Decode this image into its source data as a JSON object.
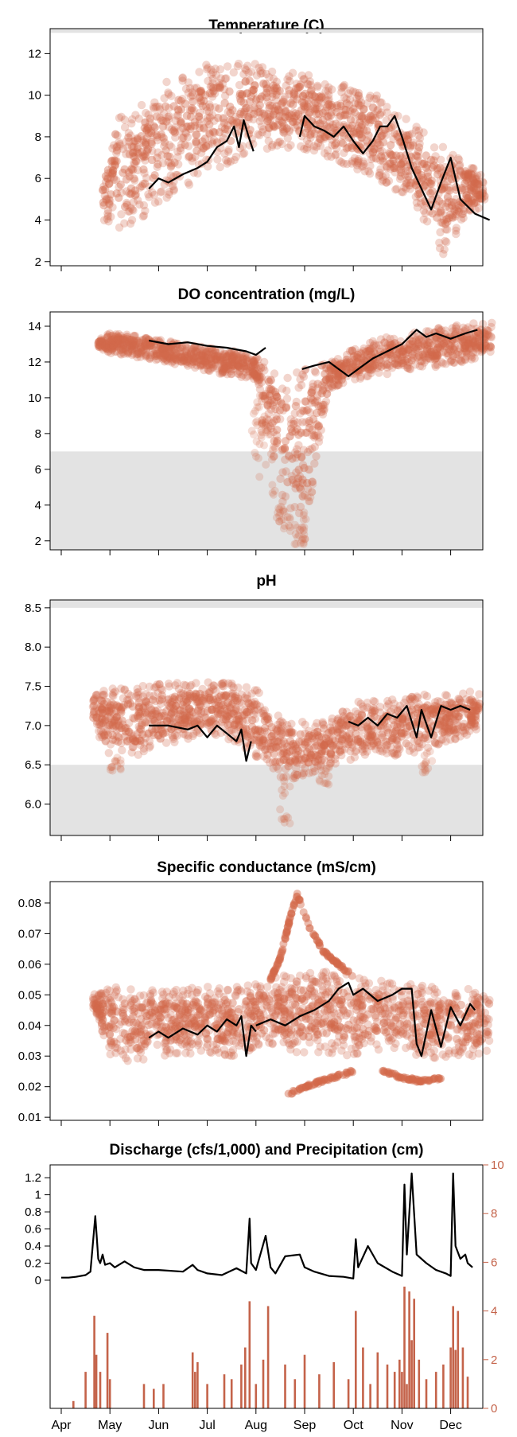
{
  "months": [
    "Apr",
    "May",
    "Jun",
    "Jul",
    "Aug",
    "Sep",
    "Oct",
    "Nov",
    "Dec"
  ],
  "colors": {
    "points": "#d2694a",
    "line": "#000000",
    "band": "#e3e3e3",
    "precip": "#c4634a",
    "axis": "#000000"
  },
  "chart_data": [
    {
      "type": "scatter",
      "title": "Temperature (C)",
      "ylim": [
        1.8,
        13.2
      ],
      "yticks": [
        2,
        4,
        6,
        8,
        10,
        12
      ],
      "yticklabels": [
        "2",
        "4",
        "6",
        "8",
        "10",
        "12"
      ],
      "bands": [
        [
          13.0,
          13.2
        ]
      ],
      "cloud": {
        "x": [
          0.85,
          1.2,
          1.6,
          2.0,
          2.5,
          3.0,
          3.5,
          4.0,
          4.5,
          5.0,
          5.5,
          6.0,
          6.5,
          7.0,
          7.5,
          7.85,
          8.3,
          8.7
        ],
        "upper": [
          7.0,
          9.0,
          9.5,
          10.5,
          11.0,
          11.5,
          11.5,
          11.8,
          11.0,
          11.2,
          10.5,
          10.5,
          10.0,
          9.0,
          8.2,
          7.5,
          7.0,
          6.0
        ],
        "lower": [
          4.0,
          3.3,
          4.0,
          4.8,
          5.5,
          6.2,
          6.8,
          7.2,
          7.5,
          7.4,
          7.0,
          6.5,
          6.0,
          5.2,
          3.8,
          2.3,
          4.0,
          4.8
        ]
      },
      "series": [
        {
          "name": "segment_1",
          "x": [
            1.8,
            2.0,
            2.2,
            2.5,
            2.8,
            3.0,
            3.2,
            3.4,
            3.55,
            3.65,
            3.75,
            3.85,
            3.95
          ],
          "y": [
            5.5,
            6.0,
            5.8,
            6.2,
            6.5,
            6.8,
            7.5,
            7.8,
            8.5,
            7.5,
            8.8,
            8.0,
            7.3
          ]
        },
        {
          "name": "segment_2",
          "x": [
            4.9,
            5.0,
            5.2,
            5.4,
            5.6,
            5.8,
            6.0,
            6.2,
            6.4,
            6.55,
            6.7,
            6.85,
            7.0,
            7.2,
            7.4,
            7.6,
            7.8,
            8.0,
            8.2,
            8.5,
            8.8
          ],
          "y": [
            8.0,
            9.0,
            8.5,
            8.3,
            8.0,
            8.5,
            7.8,
            7.2,
            7.8,
            8.5,
            8.5,
            9.0,
            8.0,
            6.5,
            5.5,
            4.5,
            5.8,
            7.0,
            5.0,
            4.3,
            4.0
          ]
        }
      ]
    },
    {
      "type": "scatter",
      "title": "DO concentration (mg/L)",
      "ylim": [
        1.5,
        14.8
      ],
      "yticks": [
        2,
        4,
        6,
        8,
        10,
        12,
        14
      ],
      "yticklabels": [
        "2",
        "4",
        "6",
        "8",
        "10",
        "12",
        "14"
      ],
      "bands": [
        [
          1.5,
          7.0
        ]
      ],
      "cloud": {
        "x": [
          0.75,
          1.0,
          1.5,
          2.0,
          2.5,
          3.0,
          3.5,
          4.0,
          4.2,
          4.5,
          4.8,
          5.0,
          5.2,
          5.5,
          5.8,
          6.0,
          6.5,
          7.0,
          7.5,
          8.0,
          8.5,
          8.85
        ],
        "upper": [
          13.3,
          13.7,
          13.5,
          13.3,
          13.0,
          12.8,
          12.7,
          12.3,
          12.0,
          11.5,
          11.4,
          11.6,
          11.8,
          12.0,
          12.3,
          12.8,
          13.3,
          13.5,
          13.8,
          14.0,
          14.2,
          14.3
        ],
        "lower": [
          12.7,
          12.5,
          12.3,
          12.0,
          11.8,
          11.5,
          11.2,
          11.0,
          9.0,
          4.0,
          3.0,
          2.0,
          6.0,
          10.5,
          10.8,
          11.0,
          11.2,
          11.5,
          11.6,
          11.8,
          12.2,
          12.5
        ],
        "spikes": [
          {
            "x": 4.0,
            "y": 6.5
          },
          {
            "x": 4.1,
            "y": 5.5
          },
          {
            "x": 4.25,
            "y": 8.0
          },
          {
            "x": 4.4,
            "y": 3.0
          },
          {
            "x": 4.6,
            "y": 2.5
          },
          {
            "x": 4.9,
            "y": 1.7
          },
          {
            "x": 5.05,
            "y": 4.5
          }
        ]
      },
      "series": [
        {
          "name": "segment_1",
          "x": [
            1.8,
            2.2,
            2.6,
            3.0,
            3.4,
            3.8,
            4.0,
            4.2
          ],
          "y": [
            13.2,
            13.0,
            13.1,
            12.9,
            12.8,
            12.6,
            12.4,
            12.8
          ]
        },
        {
          "name": "segment_2",
          "x": [
            4.95,
            5.2,
            5.5,
            5.7,
            5.9,
            6.1,
            6.4,
            6.7,
            7.0,
            7.3,
            7.5,
            7.7,
            8.0,
            8.3,
            8.55
          ],
          "y": [
            11.6,
            11.8,
            12.0,
            11.6,
            11.2,
            11.6,
            12.2,
            12.6,
            13.0,
            13.8,
            13.4,
            13.6,
            13.3,
            13.6,
            13.8
          ]
        }
      ]
    },
    {
      "type": "scatter",
      "title": "pH",
      "ylim": [
        5.6,
        8.6
      ],
      "yticks": [
        6.0,
        6.5,
        7.0,
        7.5,
        8.0,
        8.5
      ],
      "yticklabels": [
        "6.0",
        "6.5",
        "7.0",
        "7.5",
        "8.0",
        "8.5"
      ],
      "bands": [
        [
          5.6,
          6.5
        ],
        [
          8.5,
          8.6
        ]
      ],
      "cloud": {
        "x": [
          0.65,
          1.0,
          1.5,
          2.0,
          2.5,
          3.0,
          3.5,
          4.0,
          4.3,
          4.6,
          5.0,
          5.5,
          6.0,
          6.5,
          7.0,
          7.5,
          8.0,
          8.5,
          8.6
        ],
        "upper": [
          7.4,
          7.5,
          7.5,
          7.55,
          7.55,
          7.55,
          7.55,
          7.5,
          7.2,
          7.1,
          7.05,
          7.1,
          7.3,
          7.35,
          7.35,
          7.4,
          7.4,
          7.45,
          7.4
        ],
        "lower": [
          7.0,
          6.6,
          6.6,
          6.7,
          6.8,
          6.9,
          6.8,
          6.6,
          6.4,
          6.3,
          6.35,
          6.5,
          6.55,
          6.6,
          6.6,
          6.7,
          6.8,
          6.9,
          7.0
        ],
        "spikes": [
          {
            "x": 1.1,
            "y": 6.4
          },
          {
            "x": 4.6,
            "y": 5.7
          },
          {
            "x": 5.4,
            "y": 6.2
          },
          {
            "x": 7.5,
            "y": 6.4
          }
        ]
      },
      "series": [
        {
          "name": "segment_1",
          "x": [
            1.8,
            2.2,
            2.6,
            2.8,
            3.0,
            3.2,
            3.4,
            3.6,
            3.7,
            3.8,
            3.9
          ],
          "y": [
            7.0,
            7.0,
            6.95,
            7.0,
            6.85,
            7.0,
            6.9,
            6.8,
            6.95,
            6.55,
            6.8
          ]
        },
        {
          "name": "segment_2",
          "x": [
            5.9,
            6.1,
            6.3,
            6.5,
            6.7,
            6.9,
            7.1,
            7.3,
            7.4,
            7.6,
            7.8,
            8.0,
            8.2,
            8.4
          ],
          "y": [
            7.05,
            7.0,
            7.1,
            7.0,
            7.15,
            7.1,
            7.25,
            6.85,
            7.2,
            6.85,
            7.25,
            7.2,
            7.25,
            7.2
          ]
        }
      ]
    },
    {
      "type": "scatter",
      "title": "Specific conductance (mS/cm)",
      "ylim": [
        0.009,
        0.087
      ],
      "yticks": [
        0.01,
        0.02,
        0.03,
        0.04,
        0.05,
        0.06,
        0.07,
        0.08
      ],
      "yticklabels": [
        "0.01",
        "0.02",
        "0.03",
        "0.04",
        "0.05",
        "0.06",
        "0.07",
        "0.08"
      ],
      "bands": [],
      "cloud": {
        "x": [
          0.65,
          1.0,
          1.5,
          2.0,
          2.5,
          3.0,
          3.5,
          4.0,
          4.5,
          5.0,
          5.5,
          6.0,
          6.5,
          7.0,
          7.5,
          8.0,
          8.5,
          8.8
        ],
        "upper": [
          0.05,
          0.053,
          0.052,
          0.052,
          0.052,
          0.053,
          0.053,
          0.055,
          0.056,
          0.058,
          0.058,
          0.057,
          0.055,
          0.054,
          0.053,
          0.052,
          0.052,
          0.051
        ],
        "lower": [
          0.046,
          0.03,
          0.027,
          0.03,
          0.03,
          0.031,
          0.03,
          0.032,
          0.032,
          0.03,
          0.031,
          0.03,
          0.032,
          0.033,
          0.028,
          0.03,
          0.03,
          0.032
        ],
        "extras": [
          {
            "x": [
              4.3,
              4.5,
              4.7,
              4.85
            ],
            "y": [
              0.055,
              0.062,
              0.075,
              0.083
            ]
          },
          {
            "x": [
              4.85,
              5.1,
              5.4,
              5.7,
              6.0
            ],
            "y": [
              0.083,
              0.072,
              0.064,
              0.06,
              0.056
            ]
          },
          {
            "x": [
              4.6,
              5.0,
              5.4,
              5.8,
              6.0
            ],
            "y": [
              0.017,
              0.02,
              0.022,
              0.024,
              0.025
            ]
          },
          {
            "x": [
              6.6,
              7.0,
              7.3,
              7.5,
              7.8
            ],
            "y": [
              0.025,
              0.023,
              0.022,
              0.022,
              0.023
            ]
          }
        ]
      },
      "series": [
        {
          "name": "segment_1",
          "x": [
            1.8,
            2.0,
            2.2,
            2.5,
            2.8,
            3.0,
            3.2,
            3.4,
            3.6,
            3.7,
            3.8,
            3.9,
            4.0
          ],
          "y": [
            0.036,
            0.038,
            0.036,
            0.039,
            0.037,
            0.04,
            0.038,
            0.042,
            0.04,
            0.043,
            0.03,
            0.04,
            0.038
          ]
        },
        {
          "name": "segment_2",
          "x": [
            4.0,
            4.3,
            4.6,
            4.9,
            5.2,
            5.5,
            5.7,
            5.9,
            6.0,
            6.2,
            6.5,
            6.8,
            7.0,
            7.2,
            7.3,
            7.4,
            7.6,
            7.8,
            8.0,
            8.2,
            8.4,
            8.5
          ],
          "y": [
            0.04,
            0.042,
            0.04,
            0.043,
            0.045,
            0.048,
            0.052,
            0.054,
            0.05,
            0.052,
            0.048,
            0.05,
            0.052,
            0.052,
            0.034,
            0.03,
            0.045,
            0.033,
            0.046,
            0.04,
            0.047,
            0.045
          ]
        }
      ]
    },
    {
      "type": "line",
      "title": "Discharge (cfs/1,000) and Precipitation (cm)",
      "ylim": [
        -1.5,
        1.35
      ],
      "yticks": [
        0,
        0.2,
        0.4,
        0.6,
        0.8,
        1.0,
        1.2
      ],
      "yticklabels": [
        "0",
        "0.2",
        "0.4",
        "0.6",
        "0.8",
        "1",
        "1.2"
      ],
      "y2lim": [
        0,
        10
      ],
      "y2ticks": [
        0,
        2,
        4,
        6,
        8,
        10
      ],
      "y2ticklabels": [
        "0",
        "2",
        "4",
        "6",
        "8",
        "10"
      ],
      "bands": [],
      "series": [
        {
          "name": "Discharge",
          "x": [
            0.0,
            0.15,
            0.3,
            0.5,
            0.6,
            0.7,
            0.73,
            0.76,
            0.8,
            0.85,
            0.9,
            1.0,
            1.1,
            1.3,
            1.5,
            1.7,
            2.0,
            2.5,
            2.7,
            2.8,
            3.0,
            3.3,
            3.6,
            3.8,
            3.87,
            3.9,
            4.0,
            4.2,
            4.3,
            4.4,
            4.6,
            4.9,
            5.0,
            5.2,
            5.5,
            5.8,
            6.0,
            6.05,
            6.1,
            6.3,
            6.5,
            6.8,
            7.0,
            7.05,
            7.1,
            7.2,
            7.3,
            7.5,
            7.7,
            7.9,
            8.0,
            8.05,
            8.1,
            8.2,
            8.3,
            8.35,
            8.45
          ],
          "y": [
            0.03,
            0.03,
            0.04,
            0.06,
            0.1,
            0.75,
            0.5,
            0.25,
            0.2,
            0.3,
            0.18,
            0.2,
            0.15,
            0.22,
            0.15,
            0.12,
            0.12,
            0.1,
            0.18,
            0.12,
            0.08,
            0.06,
            0.14,
            0.08,
            0.72,
            0.2,
            0.12,
            0.52,
            0.15,
            0.08,
            0.28,
            0.3,
            0.15,
            0.1,
            0.05,
            0.04,
            0.02,
            0.48,
            0.15,
            0.4,
            0.2,
            0.1,
            0.05,
            1.12,
            0.3,
            1.25,
            0.3,
            0.2,
            0.12,
            0.08,
            0.05,
            1.25,
            0.4,
            0.25,
            0.3,
            0.2,
            0.15
          ]
        },
        {
          "name": "Precipitation",
          "axis": "right",
          "x": [
            0.25,
            0.5,
            0.68,
            0.72,
            0.8,
            0.95,
            1.0,
            1.7,
            1.9,
            2.1,
            2.7,
            2.75,
            2.8,
            3.0,
            3.35,
            3.5,
            3.7,
            3.78,
            3.87,
            4.0,
            4.15,
            4.25,
            4.6,
            4.8,
            5.0,
            5.3,
            5.6,
            5.9,
            6.05,
            6.2,
            6.35,
            6.5,
            6.7,
            6.85,
            6.95,
            7.0,
            7.05,
            7.1,
            7.15,
            7.2,
            7.25,
            7.35,
            7.5,
            7.7,
            7.85,
            8.0,
            8.05,
            8.1,
            8.15,
            8.25,
            8.35
          ],
          "y": [
            0.3,
            1.5,
            3.8,
            2.2,
            1.5,
            3.1,
            1.2,
            1.0,
            0.8,
            1.0,
            2.3,
            1.5,
            1.9,
            1.0,
            1.4,
            1.2,
            1.8,
            2.5,
            4.4,
            1.0,
            2.0,
            4.2,
            1.8,
            1.2,
            2.2,
            1.4,
            1.9,
            1.2,
            4.0,
            2.5,
            1.0,
            2.3,
            1.8,
            1.5,
            2.0,
            1.5,
            5.0,
            1.0,
            4.8,
            2.8,
            4.5,
            2.0,
            1.2,
            1.5,
            1.8,
            2.5,
            4.2,
            2.4,
            4.0,
            2.5,
            1.3
          ]
        }
      ]
    }
  ]
}
